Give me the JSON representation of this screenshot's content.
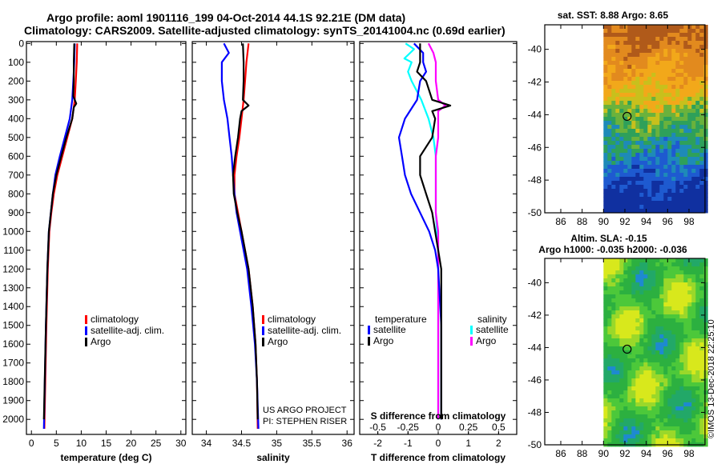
{
  "titles": {
    "line1": "Argo profile: aoml 1901116_199 04-Oct-2014 44.1S 92.21E (DM data)",
    "line2": "Climatology: CARS2009. Satellite-adjusted climatology: synTS_20141004.nc (0.69d earlier)",
    "sst_title": "sat. SST: 8.88 Argo: 8.65",
    "sla_title1": "Altim. SLA: -0.15",
    "sla_title2": "Argo h1000: -0.035 h2000: -0.036",
    "credit": "©IMOS 13-Dec-2018 22:25:10",
    "project1": "US ARGO PROJECT",
    "project2": "PI: STEPHEN RISER"
  },
  "colors": {
    "climatology": "#ff0000",
    "satellite": "#0000ff",
    "argo": "#000000",
    "sat_s": "#00ffff",
    "argo_s": "#ff00ff"
  },
  "legends": {
    "temp": [
      "climatology",
      "satellite-adj. clim.",
      "Argo"
    ],
    "sal": [
      "climatology",
      "satellite-adj. clim.",
      "Argo"
    ],
    "diff_t_head": "temperature",
    "diff_s_head": "salinity",
    "diff_t": [
      "satellite",
      "Argo"
    ],
    "diff_s": [
      "satellite",
      "Argo"
    ]
  },
  "chart_data": [
    {
      "type": "line",
      "id": "temperature",
      "xlabel": "temperature (deg C)",
      "ylabel": "",
      "xlim": [
        -1,
        31
      ],
      "ylim": [
        2080,
        -10
      ],
      "xticks": [
        0,
        5,
        10,
        15,
        20,
        25,
        30
      ],
      "yticks": [
        0,
        100,
        200,
        300,
        400,
        500,
        600,
        700,
        800,
        900,
        1000,
        1100,
        1200,
        1300,
        1400,
        1500,
        1600,
        1700,
        1800,
        1900,
        2000
      ],
      "series": [
        {
          "name": "climatology",
          "depth": [
            0,
            100,
            200,
            300,
            400,
            500,
            600,
            700,
            800,
            900,
            1000,
            1200,
            1500,
            2050
          ],
          "values": [
            9.2,
            9.1,
            8.9,
            8.7,
            8.2,
            7.2,
            6.2,
            5.2,
            4.5,
            4.0,
            3.6,
            3.3,
            3.0,
            2.6
          ]
        },
        {
          "name": "satellite-adj. clim.",
          "depth": [
            0,
            100,
            200,
            300,
            400,
            500,
            600,
            700,
            800,
            900,
            1000,
            1200,
            1500,
            2050
          ],
          "values": [
            8.7,
            8.6,
            8.4,
            8.2,
            7.7,
            6.7,
            5.7,
            4.8,
            4.3,
            3.9,
            3.5,
            3.2,
            2.9,
            2.5
          ]
        },
        {
          "name": "Argo",
          "depth": [
            0,
            100,
            200,
            280,
            320,
            340,
            400,
            500,
            600,
            700,
            800,
            900,
            1000,
            1200,
            1500,
            2000
          ],
          "values": [
            8.6,
            8.5,
            8.5,
            8.4,
            9.0,
            8.5,
            8.2,
            7.0,
            6.0,
            5.0,
            4.3,
            3.9,
            3.5,
            3.2,
            2.9,
            2.5
          ]
        }
      ]
    },
    {
      "type": "line",
      "id": "salinity",
      "xlabel": "salinity",
      "ylabel": "",
      "xlim": [
        33.8,
        36.1
      ],
      "ylim": [
        2080,
        -10
      ],
      "xticks": [
        34,
        34.5,
        35,
        35.5,
        36
      ],
      "series": [
        {
          "name": "climatology",
          "depth": [
            0,
            100,
            200,
            300,
            400,
            500,
            600,
            700,
            800,
            900,
            1000,
            1100,
            1200,
            1400,
            1600,
            1800,
            2050
          ],
          "values": [
            34.6,
            34.57,
            34.55,
            34.53,
            34.5,
            34.47,
            34.43,
            34.4,
            34.4,
            34.45,
            34.5,
            34.55,
            34.6,
            34.66,
            34.7,
            34.72,
            34.73
          ]
        },
        {
          "name": "satellite-adj. clim.",
          "depth": [
            0,
            50,
            100,
            200,
            300,
            400,
            500,
            600,
            700,
            800,
            900,
            1000,
            1100,
            1200,
            1400,
            1600,
            1800,
            2050
          ],
          "values": [
            34.25,
            34.32,
            34.22,
            34.22,
            34.25,
            34.3,
            34.33,
            34.36,
            34.38,
            34.4,
            34.43,
            34.48,
            34.53,
            34.58,
            34.64,
            34.69,
            34.72,
            34.74
          ]
        },
        {
          "name": "Argo",
          "depth": [
            0,
            100,
            200,
            300,
            330,
            360,
            400,
            500,
            600,
            700,
            800,
            900,
            1000,
            1100,
            1200,
            1400,
            1600,
            1800,
            2000
          ],
          "values": [
            34.52,
            34.53,
            34.53,
            34.52,
            34.6,
            34.5,
            34.48,
            34.45,
            34.41,
            34.38,
            34.39,
            34.44,
            34.5,
            34.55,
            34.6,
            34.66,
            34.7,
            34.72,
            34.73
          ]
        }
      ]
    },
    {
      "type": "line",
      "id": "difference",
      "xlabel": "T difference from climatology",
      "xlabel2": "S difference from climatology",
      "xlim": [
        -2.6,
        2.6
      ],
      "x2lim": [
        -0.65,
        0.65
      ],
      "ylim": [
        2080,
        -10
      ],
      "xticks": [
        -2,
        -1,
        0,
        1,
        2
      ],
      "x2ticks": [
        -0.5,
        -0.25,
        0,
        0.25,
        0.5
      ],
      "x2ticklabels": [
        "-0.5",
        "-0.25",
        "0",
        "0.25",
        "0.5"
      ],
      "series": [
        {
          "name": "temperature satellite",
          "axis": "T",
          "depth": [
            0,
            50,
            100,
            150,
            200,
            300,
            400,
            500,
            600,
            700,
            800,
            900,
            1000,
            1100,
            1200,
            1500,
            2000
          ],
          "values": [
            -0.8,
            -0.5,
            -0.5,
            -0.4,
            -0.6,
            -0.7,
            -1.1,
            -1.3,
            -1.2,
            -1.1,
            -0.9,
            -0.6,
            -0.3,
            -0.1,
            0.0,
            0.1,
            0.1
          ]
        },
        {
          "name": "temperature Argo",
          "axis": "T",
          "depth": [
            0,
            100,
            150,
            200,
            300,
            330,
            360,
            400,
            500,
            600,
            700,
            800,
            900,
            1000,
            1100,
            1200,
            1500,
            2000
          ],
          "values": [
            -0.6,
            -0.6,
            -0.7,
            -0.4,
            -0.2,
            0.4,
            -0.2,
            -0.1,
            -0.2,
            -0.6,
            -0.6,
            -0.4,
            -0.2,
            -0.1,
            0.0,
            0.1,
            0.1,
            0.1
          ]
        },
        {
          "name": "salinity satellite",
          "axis": "S",
          "depth": [
            0,
            30,
            80,
            100,
            150,
            200,
            300,
            400,
            500,
            600,
            700,
            800,
            900,
            1000,
            1100,
            1200,
            1500,
            2000
          ],
          "values": [
            -0.27,
            -0.2,
            -0.28,
            -0.22,
            -0.25,
            -0.22,
            -0.14,
            -0.08,
            -0.04,
            -0.02,
            -0.02,
            -0.02,
            -0.02,
            -0.01,
            0.0,
            0.0,
            0.0,
            0.0
          ]
        },
        {
          "name": "salinity Argo",
          "axis": "S",
          "depth": [
            0,
            50,
            100,
            200,
            300,
            330,
            360,
            400,
            500,
            600,
            700,
            800,
            900,
            1000,
            1200,
            1500,
            2000
          ],
          "values": [
            -0.08,
            -0.04,
            -0.02,
            -0.02,
            0.0,
            0.06,
            0.0,
            0.0,
            0.0,
            -0.02,
            -0.02,
            -0.02,
            -0.02,
            0.0,
            0.0,
            0.0,
            0.0
          ]
        }
      ]
    },
    {
      "type": "heatmap",
      "id": "sst-map",
      "xlim": [
        84.5,
        99.5
      ],
      "ylim": [
        -50,
        -38.5
      ],
      "xticks": [
        86,
        88,
        90,
        92,
        94,
        96,
        98
      ],
      "yticks": [
        -40,
        -42,
        -44,
        -46,
        -48,
        -50
      ],
      "marker": {
        "lon": 92.21,
        "lat": -44.1
      }
    },
    {
      "type": "heatmap",
      "id": "sla-map",
      "xlim": [
        84.5,
        99.5
      ],
      "ylim": [
        -50,
        -38.5
      ],
      "xticks": [
        86,
        88,
        90,
        92,
        94,
        96,
        98
      ],
      "yticks": [
        -40,
        -42,
        -44,
        -46,
        -48,
        -50
      ],
      "marker": {
        "lon": 92.21,
        "lat": -44.1
      }
    }
  ]
}
